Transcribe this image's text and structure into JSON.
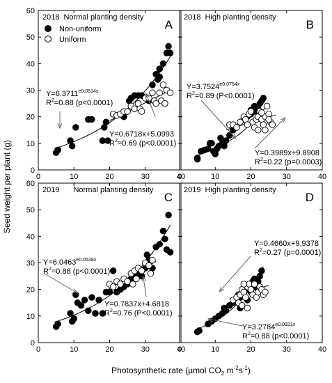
{
  "figure": {
    "y_axis_title": "Seed weight per plant (g)",
    "x_axis_title_main": "Photosynthetic rate (µmol CO",
    "x_axis_title_sub": "2",
    "x_axis_title_tail": " m",
    "x_axis_title_sup1": "-2",
    "x_axis_title_s": "s",
    "x_axis_title_sup2": "-1",
    "x_axis_title_close": ")"
  },
  "chart_data": [
    {
      "type": "scatter",
      "panel": "A",
      "year": "2018",
      "condition": "Normal planting density",
      "legend": [
        "Non-uniform",
        "Uniform"
      ],
      "legend_placement": "top-left",
      "xlim": [
        0,
        40
      ],
      "ylim": [
        0,
        60
      ],
      "xticks": [
        0,
        10,
        20,
        30,
        40
      ],
      "yticks": [
        0,
        10,
        20,
        30,
        40,
        50,
        60
      ],
      "series": [
        {
          "name": "Non-uniform",
          "marker": "filled-circle",
          "points": [
            [
              5,
              6.5
            ],
            [
              5.5,
              7.5
            ],
            [
              9,
              11
            ],
            [
              9.5,
              9
            ],
            [
              10.5,
              16
            ],
            [
              14,
              19
            ],
            [
              15,
              19
            ],
            [
              18,
              11
            ],
            [
              18.5,
              16
            ],
            [
              19,
              18
            ],
            [
              19.5,
              11
            ],
            [
              23,
              21
            ],
            [
              24,
              20
            ],
            [
              25,
              22
            ],
            [
              25.5,
              26
            ],
            [
              26,
              27
            ],
            [
              27,
              28
            ],
            [
              28,
              28
            ],
            [
              29,
              28
            ],
            [
              31,
              26
            ],
            [
              32,
              32
            ],
            [
              33,
              36
            ],
            [
              33.5,
              34
            ],
            [
              34,
              38
            ],
            [
              34,
              35
            ],
            [
              35,
              40
            ],
            [
              36,
              44
            ],
            [
              36.5,
              46.5
            ],
            [
              37,
              44
            ]
          ]
        },
        {
          "name": "Uniform",
          "marker": "open-circle",
          "points": [
            [
              21,
              21
            ],
            [
              22,
              20.5
            ],
            [
              23,
              21
            ],
            [
              24,
              22
            ],
            [
              25,
              22
            ],
            [
              26,
              24
            ],
            [
              27,
              23
            ],
            [
              28,
              25
            ],
            [
              28.5,
              23
            ],
            [
              29,
              22
            ],
            [
              30,
              27
            ],
            [
              31,
              27
            ],
            [
              32,
              29
            ],
            [
              32.5,
              26
            ],
            [
              33,
              25
            ],
            [
              34,
              29
            ],
            [
              35,
              32
            ],
            [
              36,
              30
            ],
            [
              37,
              29
            ],
            [
              34.5,
              26
            ],
            [
              35.5,
              25
            ]
          ]
        }
      ],
      "fits": [
        {
          "series": "Non-uniform",
          "kind": "exponential",
          "a": 6.3711,
          "b": 0.0514,
          "xrange": [
            4.5,
            37
          ]
        },
        {
          "series": "Uniform",
          "kind": "linear",
          "m": 0.6718,
          "c": 5.0993,
          "xrange": [
            20,
            37
          ]
        }
      ],
      "annotations": {
        "exp_line1": "Y=6.3711",
        "exp_sup": "e0.0514x",
        "exp_line2_pre": "R",
        "exp_line2_sup": "2",
        "exp_line2_post": "=0.88 (p<0.0001)",
        "lin_line1": "Y=0.6718x+5.0993",
        "lin_line2_pre": "R",
        "lin_line2_sup": "2",
        "lin_line2_post": "=0.69 (p<0.0001)"
      }
    },
    {
      "type": "scatter",
      "panel": "B",
      "year": "2018",
      "condition": "High planting density",
      "xlim": [
        0,
        40
      ],
      "ylim": [
        0,
        60
      ],
      "xticks": [
        0,
        10,
        20,
        30,
        40
      ],
      "yticks": [
        0,
        10,
        20,
        30,
        40,
        50,
        60
      ],
      "series": [
        {
          "name": "Non-uniform",
          "marker": "filled-circle",
          "points": [
            [
              5,
              4
            ],
            [
              5,
              4.5
            ],
            [
              6,
              7
            ],
            [
              7,
              7.5
            ],
            [
              8,
              8
            ],
            [
              8.5,
              10
            ],
            [
              9,
              10
            ],
            [
              9.5,
              7
            ],
            [
              10,
              6
            ],
            [
              10.5,
              8
            ],
            [
              11,
              9
            ],
            [
              11.5,
              12
            ],
            [
              12,
              10
            ],
            [
              12.5,
              9
            ],
            [
              13,
              11
            ],
            [
              14,
              13
            ],
            [
              15,
              15
            ],
            [
              16,
              16
            ],
            [
              17,
              18
            ],
            [
              18,
              19
            ],
            [
              19,
              20
            ],
            [
              20,
              21
            ],
            [
              21,
              22
            ],
            [
              22,
              23
            ],
            [
              22.5,
              25
            ],
            [
              23,
              26
            ],
            [
              23.5,
              27
            ],
            [
              21,
              24
            ],
            [
              20,
              22.5
            ]
          ]
        },
        {
          "name": "Uniform",
          "marker": "open-circle",
          "points": [
            [
              14,
              17
            ],
            [
              15,
              17
            ],
            [
              16,
              16
            ],
            [
              17,
              18
            ],
            [
              18,
              20
            ],
            [
              18.5,
              19
            ],
            [
              19,
              17
            ],
            [
              19.5,
              21
            ],
            [
              20,
              22
            ],
            [
              20.5,
              18
            ],
            [
              21,
              16
            ],
            [
              21.5,
              19
            ],
            [
              22,
              20
            ],
            [
              22.5,
              22
            ],
            [
              23,
              19
            ],
            [
              23.5,
              17
            ],
            [
              24,
              20
            ],
            [
              24.5,
              24
            ],
            [
              25,
              21
            ],
            [
              25.5,
              18
            ],
            [
              26,
              17
            ],
            [
              22,
              15
            ],
            [
              24,
              15
            ],
            [
              23,
              21.5
            ],
            [
              25,
              19
            ]
          ]
        }
      ],
      "fits": [
        {
          "series": "Non-uniform",
          "kind": "exponential",
          "a": 3.7524,
          "b": 0.0764,
          "xrange": [
            4.5,
            24
          ]
        },
        {
          "series": "Uniform",
          "kind": "linear",
          "m": 0.3989,
          "c": 9.8908,
          "xrange": [
            13,
            27
          ]
        }
      ],
      "annotations": {
        "exp_line1": "Y=3.7524",
        "exp_sup": "e0.0764x",
        "exp_line2_pre": "R",
        "exp_line2_sup": "2",
        "exp_line2_post": "=0.89 (P<0.0001)",
        "lin_line1": "Y=0.3989x+9.8908",
        "lin_line2_pre": "R",
        "lin_line2_sup": "2",
        "lin_line2_post": "=0.22 (p=0.0003)"
      }
    },
    {
      "type": "scatter",
      "panel": "C",
      "year": "2019",
      "condition": "Normal planting density",
      "xlim": [
        0,
        40
      ],
      "ylim": [
        0,
        60
      ],
      "xticks": [
        0,
        10,
        20,
        30,
        40
      ],
      "yticks": [
        0,
        10,
        20,
        30,
        40,
        50,
        60
      ],
      "series": [
        {
          "name": "Non-uniform",
          "marker": "filled-circle",
          "points": [
            [
              5,
              6
            ],
            [
              5.5,
              7
            ],
            [
              9,
              11
            ],
            [
              9.5,
              8
            ],
            [
              10,
              9
            ],
            [
              10.5,
              18
            ],
            [
              11,
              15
            ],
            [
              12,
              14
            ],
            [
              13,
              16
            ],
            [
              14,
              12
            ],
            [
              15,
              17
            ],
            [
              16,
              11
            ],
            [
              17,
              16
            ],
            [
              18,
              11
            ],
            [
              19,
              19
            ],
            [
              20,
              19
            ],
            [
              21,
              27
            ],
            [
              22,
              19
            ],
            [
              23,
              20
            ],
            [
              24,
              21
            ],
            [
              25,
              22
            ],
            [
              26,
              24
            ],
            [
              27,
              25
            ],
            [
              28,
              26
            ],
            [
              29,
              25
            ],
            [
              30,
              28
            ],
            [
              30.5,
              33
            ],
            [
              31,
              31
            ],
            [
              32,
              28
            ],
            [
              33,
              36
            ],
            [
              34,
              37
            ],
            [
              35,
              42
            ],
            [
              36,
              35
            ],
            [
              36.5,
              48
            ],
            [
              37,
              34
            ],
            [
              35.5,
              39
            ]
          ]
        },
        {
          "name": "Uniform",
          "marker": "open-circle",
          "points": [
            [
              20,
              22
            ],
            [
              21,
              21
            ],
            [
              22,
              23
            ],
            [
              23,
              22
            ],
            [
              24,
              24
            ],
            [
              25,
              23
            ],
            [
              26,
              26
            ],
            [
              26.5,
              22
            ],
            [
              27,
              27
            ],
            [
              27.5,
              24
            ],
            [
              28,
              28
            ],
            [
              29,
              27
            ],
            [
              30,
              30
            ],
            [
              31,
              29
            ],
            [
              31.5,
              26
            ],
            [
              32,
              31
            ]
          ]
        }
      ],
      "fits": [
        {
          "series": "Non-uniform",
          "kind": "exponential",
          "a": 6.0463,
          "b": 0.0538,
          "xrange": [
            4.5,
            37
          ]
        },
        {
          "series": "Uniform",
          "kind": "linear",
          "m": 0.7837,
          "c": 4.6818,
          "xrange": [
            19,
            33
          ]
        }
      ],
      "annotations": {
        "exp_line1": "Y=6.0463",
        "exp_sup": "e0.0538x",
        "exp_line2_pre": "R",
        "exp_line2_sup": "2",
        "exp_line2_post": "=0.88 (p<0.0001)",
        "lin_line1": "Y=0.7837x+4.6818",
        "lin_line2_pre": "R",
        "lin_line2_sup": "2",
        "lin_line2_post": "=0.76 (P<0.0001)"
      }
    },
    {
      "type": "scatter",
      "panel": "D",
      "year": "2019",
      "condition": "High planting density",
      "xlim": [
        0,
        40
      ],
      "ylim": [
        0,
        60
      ],
      "xticks": [
        0,
        10,
        20,
        30,
        40
      ],
      "yticks": [
        0,
        10,
        20,
        30,
        40,
        50,
        60
      ],
      "series": [
        {
          "name": "Non-uniform",
          "marker": "filled-circle",
          "points": [
            [
              5,
              4
            ],
            [
              5.5,
              4.5
            ],
            [
              8,
              7
            ],
            [
              9,
              8
            ],
            [
              10,
              9
            ],
            [
              11,
              10
            ],
            [
              12,
              11
            ],
            [
              12.5,
              13
            ],
            [
              13,
              12
            ],
            [
              14,
              14
            ],
            [
              15,
              15
            ],
            [
              16,
              16
            ],
            [
              16.5,
              18
            ],
            [
              17,
              17
            ],
            [
              18,
              19
            ],
            [
              18.5,
              20
            ],
            [
              19,
              21
            ],
            [
              20,
              22
            ],
            [
              20.5,
              23
            ],
            [
              21,
              24
            ],
            [
              22,
              23
            ],
            [
              22.5,
              25
            ],
            [
              23,
              27
            ],
            [
              21.5,
              21
            ],
            [
              20,
              19
            ],
            [
              19,
              16
            ],
            [
              17,
              13
            ]
          ]
        },
        {
          "name": "Uniform",
          "marker": "open-circle",
          "points": [
            [
              15,
              16
            ],
            [
              16,
              17
            ],
            [
              16.5,
              15
            ],
            [
              17,
              18
            ],
            [
              17.5,
              20
            ],
            [
              18,
              19
            ],
            [
              18.5,
              17
            ],
            [
              19,
              21
            ],
            [
              19.5,
              22
            ],
            [
              20,
              20
            ],
            [
              20.5,
              18
            ],
            [
              21,
              22
            ],
            [
              21.5,
              17
            ],
            [
              22,
              19
            ],
            [
              22.5,
              21
            ],
            [
              23,
              20
            ],
            [
              23.5,
              18
            ],
            [
              24,
              19
            ],
            [
              17.5,
              14
            ],
            [
              19,
              13
            ],
            [
              18,
              22
            ]
          ]
        }
      ],
      "fits": [
        {
          "series": "Non-uniform",
          "kind": "exponential",
          "a": 3.2784,
          "b": 0.0921,
          "xrange": [
            4.5,
            23.5
          ]
        },
        {
          "series": "Uniform",
          "kind": "linear",
          "m": 0.466,
          "c": 9.9378,
          "xrange": [
            14,
            25
          ]
        }
      ],
      "annotations": {
        "exp_line1": "Y=3.2784",
        "exp_sup": "e0.0921x",
        "exp_line2_pre": "R",
        "exp_line2_sup": "2",
        "exp_line2_post": "=0.88 (p<0.0001)",
        "lin_line1": "Y=0.4660x+9.9378",
        "lin_line2_pre": "R",
        "lin_line2_sup": "2",
        "lin_line2_post": "=0.27 (p=0.0001)"
      }
    }
  ]
}
